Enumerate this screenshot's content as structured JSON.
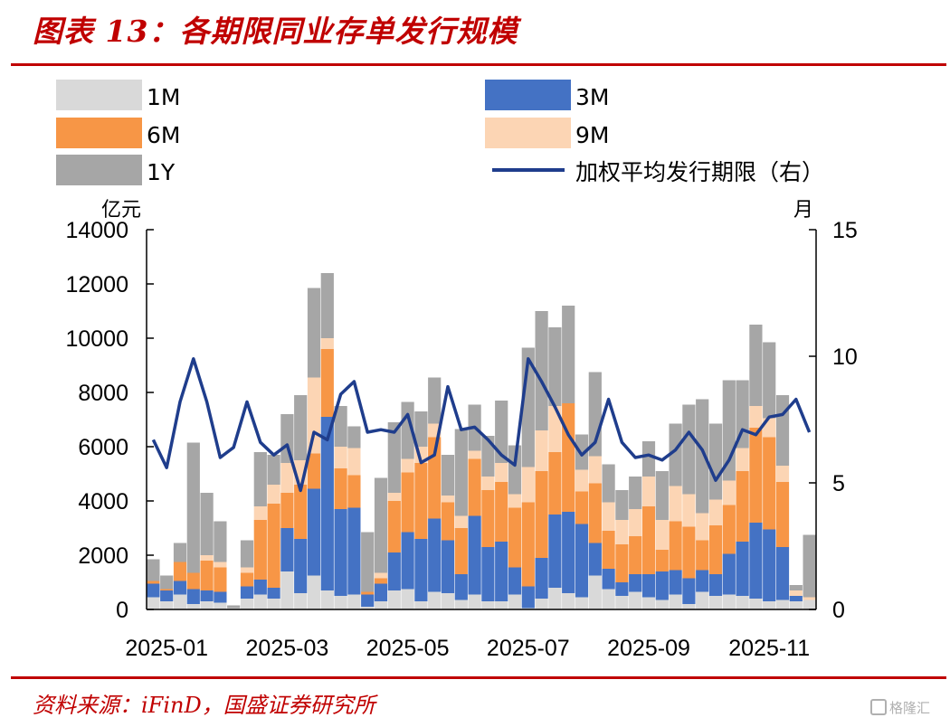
{
  "figure_title": "图表 13：各期限同业存单发行规模",
  "source_text": "资料来源：iFinD，国盛证券研究所",
  "watermark_text": "格隆汇",
  "chart_data": {
    "type": "stacked-bar+line",
    "title": "各期限同业存单发行规模",
    "left_axis_unit": "亿元",
    "right_axis_unit": "月",
    "ylim_left": [
      0,
      14000
    ],
    "ylim_right": [
      0,
      15
    ],
    "yticks_left": [
      "0",
      "2000",
      "4000",
      "6000",
      "8000",
      "10000",
      "12000",
      "14000"
    ],
    "yticks_right": [
      "0",
      "5",
      "10",
      "15"
    ],
    "xtick_labels": [
      "2025-01",
      "2025-03",
      "2025-05",
      "2025-07",
      "2025-09",
      "2025-11"
    ],
    "xtick_positions": [
      1,
      10,
      19,
      28,
      37,
      46
    ],
    "legend": [
      "1M",
      "3M",
      "6M",
      "9M",
      "1Y",
      "加权平均发行期限（右）"
    ],
    "colors": {
      "1M": "#d9d9d9",
      "3M": "#4472c4",
      "6M": "#f79646",
      "9M": "#fcd5b4",
      "1Y": "#a6a6a6",
      "line": "#1f3d8c"
    },
    "series": [
      {
        "name": "1M",
        "axis": "left",
        "values": [
          450,
          300,
          550,
          200,
          300,
          250,
          50,
          400,
          550,
          400,
          1400,
          600,
          1250,
          700,
          500,
          550,
          100,
          300,
          700,
          750,
          300,
          650,
          600,
          350,
          550,
          300,
          300,
          550,
          50,
          400,
          800,
          600,
          450,
          1250,
          750,
          500,
          650,
          450,
          350,
          550,
          200,
          650,
          500,
          550,
          500,
          400,
          300,
          350,
          300,
          350
        ]
      },
      {
        "name": "3M",
        "axis": "left",
        "values": [
          500,
          400,
          500,
          550,
          400,
          400,
          0,
          450,
          550,
          400,
          1600,
          2000,
          3200,
          6400,
          3200,
          3200,
          450,
          650,
          1400,
          2100,
          2300,
          2700,
          1950,
          950,
          2900,
          2000,
          2200,
          1000,
          800,
          1500,
          2700,
          3000,
          2700,
          1200,
          750,
          500,
          650,
          850,
          1050,
          900,
          950,
          800,
          800,
          1500,
          2000,
          2800,
          2650,
          1950,
          200,
          0
        ]
      },
      {
        "name": "6M",
        "axis": "left",
        "values": [
          100,
          50,
          700,
          600,
          1100,
          900,
          0,
          500,
          2200,
          3100,
          1300,
          2000,
          1300,
          2500,
          1500,
          1200,
          100,
          200,
          1900,
          2200,
          2800,
          3000,
          1400,
          1700,
          2100,
          2100,
          2200,
          2200,
          3100,
          3200,
          2300,
          4000,
          1200,
          2200,
          1400,
          1400,
          1400,
          2500,
          800,
          1800,
          1900,
          1100,
          1800,
          1800,
          2600,
          3500,
          3400,
          2400,
          0,
          0
        ]
      },
      {
        "name": "9M",
        "axis": "left",
        "values": [
          0,
          0,
          0,
          0,
          200,
          200,
          0,
          200,
          500,
          700,
          1100,
          900,
          2800,
          400,
          800,
          1000,
          0,
          200,
          300,
          500,
          600,
          500,
          250,
          450,
          300,
          500,
          700,
          500,
          1300,
          1500,
          1700,
          0,
          800,
          1000,
          1050,
          900,
          1000,
          1100,
          1100,
          1300,
          1200,
          1000,
          950,
          900,
          850,
          800,
          700,
          600,
          200,
          100
        ]
      },
      {
        "name": "1Y",
        "axis": "left",
        "values": [
          800,
          500,
          700,
          4800,
          2300,
          1500,
          100,
          1000,
          2000,
          1100,
          1800,
          2400,
          3300,
          2400,
          1500,
          800,
          2200,
          3500,
          2600,
          2100,
          1300,
          1700,
          1500,
          3200,
          1700,
          1500,
          2300,
          1800,
          4400,
          4400,
          2900,
          3600,
          1300,
          3100,
          1400,
          1100,
          1200,
          1300,
          1800,
          2300,
          3300,
          4200,
          2800,
          3700,
          2500,
          3000,
          2800,
          2600,
          200,
          2300
        ]
      },
      {
        "name": "加权平均发行期限（右）",
        "axis": "right",
        "values": [
          6.7,
          5.6,
          8.2,
          9.9,
          8.2,
          6.0,
          6.4,
          8.2,
          6.6,
          6.1,
          6.5,
          4.7,
          7.0,
          6.7,
          8.5,
          9.0,
          7.0,
          7.1,
          7.0,
          7.7,
          5.8,
          6.1,
          8.8,
          7.1,
          7.2,
          6.7,
          6.1,
          5.7,
          9.9,
          9.0,
          8.0,
          6.9,
          6.1,
          6.6,
          8.3,
          6.6,
          6.0,
          6.1,
          5.9,
          6.3,
          7.0,
          6.3,
          5.1,
          5.9,
          7.1,
          6.9,
          7.6,
          7.7,
          8.3,
          7.0
        ]
      }
    ]
  }
}
